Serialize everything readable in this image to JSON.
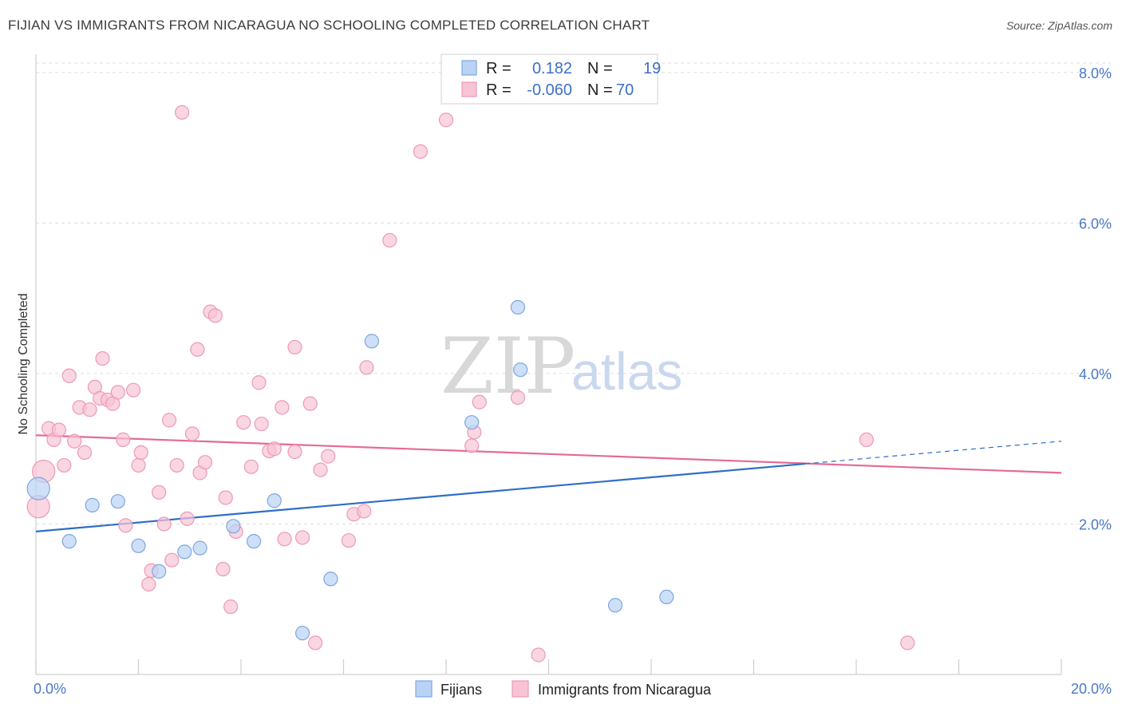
{
  "title": "FIJIAN VS IMMIGRANTS FROM NICARAGUA NO SCHOOLING COMPLETED CORRELATION CHART",
  "source": "Source: ZipAtlas.com",
  "watermark": {
    "zip": "ZIP",
    "atlas": "atlas"
  },
  "colors": {
    "blue_fill": "#b9d3f5",
    "blue_stroke": "#7ea6df",
    "blue_line": "#2f6ec7",
    "pink_fill": "#f8c3d5",
    "pink_stroke": "#ec9ab6",
    "pink_line": "#e46b95",
    "grid": "#dcdcdc",
    "tick_text": "#4a78c8"
  },
  "legend_top": {
    "rows": [
      {
        "r_label": "R =",
        "r_value": "0.182",
        "n_label": "N =",
        "n_value": "19",
        "series": "blue"
      },
      {
        "r_label": "R =",
        "r_value": "-0.060",
        "n_label": "N =",
        "n_value": "70",
        "series": "pink"
      }
    ]
  },
  "chart_data": {
    "type": "scatter",
    "ylabel": "No Schooling Completed",
    "xlim": [
      0,
      20
    ],
    "ylim": [
      0,
      8.2
    ],
    "x_ticks": [
      "0.0%",
      "20.0%"
    ],
    "y_ticks": [
      {
        "value": 2,
        "label": "2.0%"
      },
      {
        "value": 4,
        "label": "4.0%"
      },
      {
        "value": 6,
        "label": "6.0%"
      },
      {
        "value": 8,
        "label": "8.0%"
      }
    ],
    "grid": "horizontal-dashed",
    "legend_position": "bottom",
    "series": [
      {
        "name": "Fijians",
        "color": "blue",
        "trend": {
          "x0": 0,
          "y0": 1.9,
          "x1": 15,
          "y1": 2.8,
          "dash_x1": 20,
          "dash_y1": 3.1
        },
        "points": [
          {
            "x": 0.05,
            "y": 2.47,
            "big": true
          },
          {
            "x": 0.65,
            "y": 1.77
          },
          {
            "x": 1.1,
            "y": 2.25
          },
          {
            "x": 1.6,
            "y": 2.3
          },
          {
            "x": 2.0,
            "y": 1.71
          },
          {
            "x": 2.4,
            "y": 1.37
          },
          {
            "x": 2.9,
            "y": 1.63
          },
          {
            "x": 3.2,
            "y": 1.68
          },
          {
            "x": 3.85,
            "y": 1.97
          },
          {
            "x": 4.25,
            "y": 1.77
          },
          {
            "x": 4.65,
            "y": 2.31
          },
          {
            "x": 5.2,
            "y": 0.55
          },
          {
            "x": 5.75,
            "y": 1.27
          },
          {
            "x": 6.55,
            "y": 4.43
          },
          {
            "x": 8.5,
            "y": 3.35
          },
          {
            "x": 9.4,
            "y": 4.88
          },
          {
            "x": 9.45,
            "y": 4.05
          },
          {
            "x": 11.3,
            "y": 0.92
          },
          {
            "x": 12.3,
            "y": 1.03
          }
        ]
      },
      {
        "name": "Immigrants from Nicaragua",
        "color": "pink",
        "trend": {
          "x0": 0,
          "y0": 3.18,
          "x1": 20,
          "y1": 2.68
        },
        "points": [
          {
            "x": 0.05,
            "y": 2.23,
            "big": true
          },
          {
            "x": 0.15,
            "y": 2.7,
            "big": true
          },
          {
            "x": 0.25,
            "y": 3.27
          },
          {
            "x": 0.35,
            "y": 3.12
          },
          {
            "x": 0.45,
            "y": 3.25
          },
          {
            "x": 0.55,
            "y": 2.78
          },
          {
            "x": 0.65,
            "y": 3.97
          },
          {
            "x": 0.75,
            "y": 3.1
          },
          {
            "x": 0.85,
            "y": 3.55
          },
          {
            "x": 0.95,
            "y": 2.95
          },
          {
            "x": 1.05,
            "y": 3.52
          },
          {
            "x": 1.15,
            "y": 3.82
          },
          {
            "x": 1.25,
            "y": 3.67
          },
          {
            "x": 1.3,
            "y": 4.2
          },
          {
            "x": 1.4,
            "y": 3.65
          },
          {
            "x": 1.5,
            "y": 3.6
          },
          {
            "x": 1.6,
            "y": 3.75
          },
          {
            "x": 1.7,
            "y": 3.12
          },
          {
            "x": 1.75,
            "y": 1.98
          },
          {
            "x": 1.9,
            "y": 3.78
          },
          {
            "x": 2.0,
            "y": 2.78
          },
          {
            "x": 2.05,
            "y": 2.95
          },
          {
            "x": 2.2,
            "y": 1.2
          },
          {
            "x": 2.25,
            "y": 1.38
          },
          {
            "x": 2.4,
            "y": 2.42
          },
          {
            "x": 2.5,
            "y": 2.0
          },
          {
            "x": 2.6,
            "y": 3.38
          },
          {
            "x": 2.65,
            "y": 1.52
          },
          {
            "x": 2.75,
            "y": 2.78
          },
          {
            "x": 2.85,
            "y": 7.47
          },
          {
            "x": 2.95,
            "y": 2.07
          },
          {
            "x": 3.05,
            "y": 3.2
          },
          {
            "x": 3.15,
            "y": 4.32
          },
          {
            "x": 3.2,
            "y": 2.68
          },
          {
            "x": 3.3,
            "y": 2.82
          },
          {
            "x": 3.4,
            "y": 4.82
          },
          {
            "x": 3.5,
            "y": 4.77
          },
          {
            "x": 3.65,
            "y": 1.4
          },
          {
            "x": 3.7,
            "y": 2.35
          },
          {
            "x": 3.8,
            "y": 0.9
          },
          {
            "x": 3.9,
            "y": 1.9
          },
          {
            "x": 4.05,
            "y": 3.35
          },
          {
            "x": 4.2,
            "y": 2.76
          },
          {
            "x": 4.35,
            "y": 3.88
          },
          {
            "x": 4.4,
            "y": 3.33
          },
          {
            "x": 4.55,
            "y": 2.97
          },
          {
            "x": 4.65,
            "y": 3.0
          },
          {
            "x": 4.8,
            "y": 3.55
          },
          {
            "x": 4.85,
            "y": 1.8
          },
          {
            "x": 5.05,
            "y": 4.35
          },
          {
            "x": 5.05,
            "y": 2.96
          },
          {
            "x": 5.2,
            "y": 1.82
          },
          {
            "x": 5.35,
            "y": 3.6
          },
          {
            "x": 5.45,
            "y": 0.42
          },
          {
            "x": 5.55,
            "y": 2.72
          },
          {
            "x": 5.7,
            "y": 2.9
          },
          {
            "x": 6.1,
            "y": 1.78
          },
          {
            "x": 6.2,
            "y": 2.13
          },
          {
            "x": 6.4,
            "y": 2.17
          },
          {
            "x": 6.45,
            "y": 4.08
          },
          {
            "x": 6.9,
            "y": 5.77
          },
          {
            "x": 7.5,
            "y": 6.95
          },
          {
            "x": 8.0,
            "y": 7.37
          },
          {
            "x": 8.5,
            "y": 3.04
          },
          {
            "x": 8.55,
            "y": 3.22
          },
          {
            "x": 8.65,
            "y": 3.62
          },
          {
            "x": 9.4,
            "y": 3.68
          },
          {
            "x": 9.8,
            "y": 0.26
          },
          {
            "x": 16.2,
            "y": 3.12
          },
          {
            "x": 17.0,
            "y": 0.42
          }
        ]
      }
    ]
  },
  "legend_bottom": [
    {
      "label": "Fijians",
      "series": "blue"
    },
    {
      "label": "Immigrants from Nicaragua",
      "series": "pink"
    }
  ]
}
